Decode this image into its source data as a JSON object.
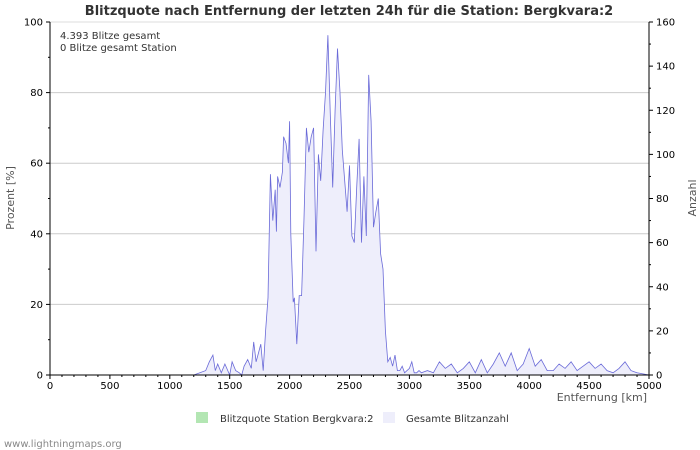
{
  "chart_data": {
    "type": "area",
    "title": "Blitzquote nach Entfernung der letzten 24h für die Station: Bergkvara:2",
    "xlabel": "Entfernung   [km]",
    "ylabel_left": "Prozent   [%]",
    "ylabel_right": "Anzahl",
    "xlim": [
      0,
      5000
    ],
    "ylim_left": [
      0,
      100
    ],
    "ylim_right": [
      0,
      160
    ],
    "x_ticks": [
      "0",
      "500",
      "1000",
      "1500",
      "2000",
      "2500",
      "3000",
      "3500",
      "4000",
      "4500",
      "5000"
    ],
    "y_ticks_left": [
      "0",
      "20",
      "40",
      "60",
      "80",
      "100"
    ],
    "y_ticks_right": [
      "0",
      "20",
      "40",
      "60",
      "80",
      "100",
      "120",
      "140",
      "160"
    ],
    "grid": true,
    "info_lines": [
      "4.393 Blitze gesamt",
      "0 Blitze gesamt Station"
    ],
    "colors": {
      "station": "#b3e6b3",
      "total_fill": "#eeeefb",
      "total_line": "#6a6ad8"
    },
    "series": [
      {
        "name": "Blitzquote Station Bergkvara:2",
        "axis": "left",
        "x": [
          0,
          5000
        ],
        "values": [
          0,
          0
        ]
      },
      {
        "name": "Gesamte Blitzanzahl",
        "axis": "right",
        "x": [
          0,
          1200,
          1300,
          1330,
          1360,
          1380,
          1400,
          1430,
          1460,
          1500,
          1520,
          1550,
          1580,
          1600,
          1620,
          1650,
          1680,
          1700,
          1720,
          1740,
          1760,
          1780,
          1800,
          1820,
          1840,
          1860,
          1880,
          1890,
          1900,
          1920,
          1940,
          1950,
          1970,
          1990,
          2000,
          2010,
          2030,
          2040,
          2060,
          2080,
          2100,
          2120,
          2140,
          2160,
          2180,
          2200,
          2220,
          2240,
          2260,
          2280,
          2300,
          2320,
          2340,
          2360,
          2380,
          2400,
          2420,
          2440,
          2460,
          2480,
          2500,
          2520,
          2540,
          2560,
          2580,
          2600,
          2620,
          2640,
          2660,
          2680,
          2700,
          2720,
          2740,
          2760,
          2780,
          2800,
          2820,
          2840,
          2860,
          2880,
          2900,
          2920,
          2940,
          2960,
          2980,
          3000,
          3020,
          3040,
          3060,
          3080,
          3100,
          3150,
          3200,
          3250,
          3300,
          3350,
          3400,
          3450,
          3500,
          3550,
          3600,
          3650,
          3700,
          3750,
          3800,
          3850,
          3900,
          3950,
          4000,
          4050,
          4100,
          4150,
          4200,
          4250,
          4300,
          4350,
          4400,
          4450,
          4500,
          4550,
          4600,
          4650,
          4700,
          4750,
          4800,
          4850,
          4900,
          5000
        ],
        "values": [
          0,
          0,
          2,
          6,
          9,
          2,
          5,
          1,
          5,
          0,
          6,
          2,
          1,
          0,
          4,
          7,
          3,
          15,
          6,
          10,
          14,
          2,
          20,
          35,
          91,
          70,
          84,
          65,
          90,
          85,
          92,
          108,
          105,
          96,
          115,
          64,
          33,
          35,
          14,
          36,
          36,
          71,
          112,
          101,
          108,
          112,
          56,
          100,
          88,
          111,
          128,
          154,
          118,
          85,
          120,
          148,
          129,
          102,
          88,
          74,
          95,
          63,
          60,
          85,
          107,
          60,
          90,
          63,
          136,
          115,
          67,
          74,
          80,
          55,
          48,
          20,
          6,
          8,
          4,
          9,
          2,
          2,
          4,
          1,
          2,
          3,
          6,
          1,
          1,
          2,
          1,
          2,
          1,
          6,
          3,
          5,
          1,
          3,
          6,
          1,
          7,
          1,
          5,
          10,
          4,
          10,
          2,
          5,
          12,
          4,
          7,
          2,
          2,
          5,
          3,
          6,
          2,
          4,
          6,
          3,
          5,
          2,
          1,
          3,
          6,
          2,
          1,
          0
        ]
      }
    ]
  },
  "legend": {
    "station": "Blitzquote Station Bergkvara:2",
    "total": "Gesamte Blitzanzahl"
  },
  "footer": "www.lightningmaps.org"
}
